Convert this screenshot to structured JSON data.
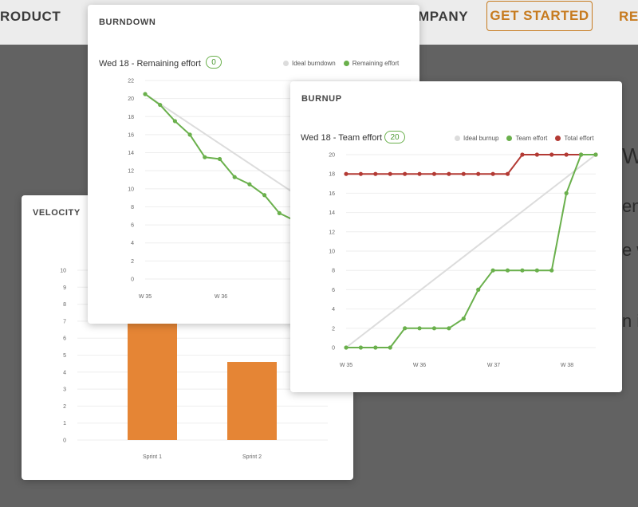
{
  "nav": {
    "product": "RODUCT",
    "company": "MPANY",
    "cta": "GET STARTED",
    "last": "REG"
  },
  "background": {
    "line1": "W",
    "line2": "en",
    "line3": "e w",
    "line4": "n i"
  },
  "colors": {
    "green": "#6ab04c",
    "red": "#b33a34",
    "ideal": "#dcdcdc",
    "orange": "#e58535",
    "accent": "#c77b1f"
  },
  "burndown": {
    "title": "BURNDOWN",
    "subtitle": "Wed 18 - Remaining effort",
    "badge": "0",
    "legend": [
      "Ideal burndown",
      "Remaining effort"
    ]
  },
  "burnup": {
    "title": "BURNUP",
    "subtitle": "Wed 18 - Team effort",
    "badge": "20",
    "legend": [
      "Ideal burnup",
      "Team effort",
      "Total effort"
    ]
  },
  "velocity": {
    "title": "VELOCITY"
  },
  "chart_data": [
    {
      "type": "line",
      "title": "BURNDOWN",
      "x_ticks": [
        "W 35",
        "W 36"
      ],
      "y_ticks": [
        0,
        2,
        4,
        6,
        8,
        10,
        12,
        14,
        16,
        18,
        20,
        22
      ],
      "ylim": [
        0,
        22
      ],
      "series": [
        {
          "name": "Ideal burndown",
          "points": [
            [
              0,
              20.5
            ],
            [
              10,
              9.5
            ]
          ]
        },
        {
          "name": "Remaining effort",
          "values": [
            20.5,
            19.3,
            17.5,
            16,
            13.5,
            13.3,
            11.3,
            10.5,
            9.3,
            7.3,
            6.5
          ]
        }
      ]
    },
    {
      "type": "line",
      "title": "BURNUP",
      "x_ticks": [
        "W 35",
        "W 36",
        "W 37",
        "W 38"
      ],
      "y_ticks": [
        0,
        2,
        4,
        6,
        8,
        10,
        12,
        14,
        16,
        18,
        20
      ],
      "ylim": [
        0,
        20
      ],
      "series": [
        {
          "name": "Ideal burnup",
          "points": [
            [
              0,
              0
            ],
            [
              17,
              20
            ]
          ]
        },
        {
          "name": "Team effort",
          "values": [
            0,
            0,
            0,
            0,
            2,
            2,
            2,
            2,
            3,
            6,
            8,
            8,
            8,
            8,
            8,
            16,
            20,
            20
          ]
        },
        {
          "name": "Total effort",
          "values": [
            18,
            18,
            18,
            18,
            18,
            18,
            18,
            18,
            18,
            18,
            18,
            18,
            20,
            20,
            20,
            20,
            20,
            20
          ]
        }
      ]
    },
    {
      "type": "bar",
      "title": "VELOCITY",
      "categories": [
        "Sprint 1",
        "Sprint 2"
      ],
      "values": [
        6.9,
        4.6
      ],
      "y_ticks": [
        0,
        1,
        2,
        3,
        4,
        5,
        6,
        7,
        8,
        9,
        10
      ],
      "ylim": [
        0,
        10
      ]
    }
  ]
}
